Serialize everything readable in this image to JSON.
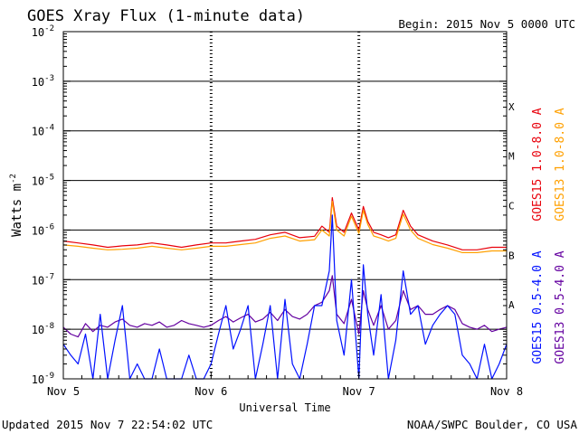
{
  "chart_data": {
    "type": "line",
    "title": "GOES Xray Flux (1-minute data)",
    "begin_label": "Begin:  2015 Nov 5 0000 UTC",
    "xlabel": "Universal Time",
    "ylabel": "Watts m",
    "ylabel_exp": "-2",
    "x_ticks": [
      "Nov 5",
      "Nov 6",
      "Nov 7",
      "Nov 8"
    ],
    "xlim": [
      0,
      3
    ],
    "x_unit": "days since 2015 Nov 5 0000 UTC",
    "y_scale": "log",
    "ylim": [
      1e-09,
      0.01
    ],
    "y_ticks": [
      {
        "base": "10",
        "exp": "-2"
      },
      {
        "base": "10",
        "exp": "-3"
      },
      {
        "base": "10",
        "exp": "-4"
      },
      {
        "base": "10",
        "exp": "-5"
      },
      {
        "base": "10",
        "exp": "-6"
      },
      {
        "base": "10",
        "exp": "-7"
      },
      {
        "base": "10",
        "exp": "-8"
      },
      {
        "base": "10",
        "exp": "-9"
      }
    ],
    "flare_classes": [
      {
        "label": "X",
        "value": 0.0001
      },
      {
        "label": "M",
        "value": 1e-05
      },
      {
        "label": "C",
        "value": 1e-06
      },
      {
        "label": "B",
        "value": 1e-07
      },
      {
        "label": "A",
        "value": 1e-08
      }
    ],
    "series": [
      {
        "name": "GOES15 1.0-8.0 A",
        "color": "#e8000b",
        "x": [
          0,
          0.1,
          0.2,
          0.3,
          0.4,
          0.5,
          0.6,
          0.7,
          0.8,
          0.9,
          1.0,
          1.1,
          1.2,
          1.3,
          1.4,
          1.5,
          1.6,
          1.7,
          1.75,
          1.8,
          1.82,
          1.85,
          1.9,
          1.95,
          2.0,
          2.03,
          2.06,
          2.1,
          2.15,
          2.2,
          2.25,
          2.3,
          2.35,
          2.4,
          2.5,
          2.6,
          2.7,
          2.8,
          2.9,
          3.0
        ],
        "values": [
          6e-07,
          5.5e-07,
          5e-07,
          4.5e-07,
          4.8e-07,
          5e-07,
          5.5e-07,
          5e-07,
          4.5e-07,
          5e-07,
          5.5e-07,
          5.5e-07,
          6e-07,
          6.5e-07,
          8e-07,
          9e-07,
          7e-07,
          7.5e-07,
          1.2e-06,
          9e-07,
          4.5e-06,
          1.2e-06,
          9e-07,
          2.2e-06,
          1e-06,
          3e-06,
          1.5e-06,
          9e-07,
          8e-07,
          7e-07,
          8e-07,
          2.5e-06,
          1.2e-06,
          8e-07,
          6e-07,
          5e-07,
          4e-07,
          4e-07,
          4.5e-07,
          4.5e-07
        ]
      },
      {
        "name": "GOES13 1.0-8.0 A",
        "color": "#ffa000",
        "x": [
          0,
          0.1,
          0.2,
          0.3,
          0.4,
          0.5,
          0.6,
          0.7,
          0.8,
          0.9,
          1.0,
          1.1,
          1.2,
          1.3,
          1.4,
          1.5,
          1.6,
          1.7,
          1.75,
          1.8,
          1.82,
          1.85,
          1.9,
          1.95,
          2.0,
          2.03,
          2.06,
          2.1,
          2.15,
          2.2,
          2.25,
          2.3,
          2.35,
          2.4,
          2.5,
          2.6,
          2.7,
          2.8,
          2.9,
          3.0
        ],
        "values": [
          5e-07,
          4.7e-07,
          4.3e-07,
          4e-07,
          4.1e-07,
          4.3e-07,
          4.7e-07,
          4.3e-07,
          4e-07,
          4.3e-07,
          4.7e-07,
          4.7e-07,
          5.1e-07,
          5.5e-07,
          6.8e-07,
          7.6e-07,
          6e-07,
          6.4e-07,
          1e-06,
          7.6e-07,
          3.8e-06,
          1e-06,
          7.6e-07,
          1.9e-06,
          8.5e-07,
          2.5e-06,
          1.3e-06,
          7.6e-07,
          6.8e-07,
          6e-07,
          6.8e-07,
          2.1e-06,
          1e-06,
          6.8e-07,
          5.1e-07,
          4.3e-07,
          3.5e-07,
          3.5e-07,
          3.8e-07,
          3.8e-07
        ]
      },
      {
        "name": "GOES15 0.5-4.0 A",
        "color": "#0010ff",
        "x": [
          0,
          0.05,
          0.1,
          0.15,
          0.2,
          0.25,
          0.3,
          0.35,
          0.4,
          0.45,
          0.5,
          0.55,
          0.6,
          0.65,
          0.7,
          0.75,
          0.8,
          0.85,
          0.9,
          0.95,
          1.0,
          1.05,
          1.1,
          1.15,
          1.2,
          1.25,
          1.3,
          1.35,
          1.4,
          1.45,
          1.5,
          1.55,
          1.6,
          1.65,
          1.7,
          1.75,
          1.8,
          1.82,
          1.85,
          1.9,
          1.95,
          2.0,
          2.03,
          2.06,
          2.1,
          2.15,
          2.2,
          2.25,
          2.3,
          2.35,
          2.4,
          2.45,
          2.5,
          2.55,
          2.6,
          2.65,
          2.7,
          2.75,
          2.8,
          2.85,
          2.9,
          2.95,
          3.0
        ],
        "values": [
          5e-09,
          3e-09,
          2e-09,
          8e-09,
          1e-09,
          2e-08,
          1e-09,
          6e-09,
          3e-08,
          1e-09,
          2e-09,
          1e-09,
          1e-09,
          4e-09,
          1e-09,
          1e-09,
          1e-09,
          3e-09,
          1e-09,
          1e-09,
          2e-09,
          8e-09,
          3e-08,
          4e-09,
          1e-08,
          3e-08,
          1e-09,
          5e-09,
          3e-08,
          1e-09,
          4e-08,
          2e-09,
          1e-09,
          5e-09,
          3e-08,
          3e-08,
          1.5e-07,
          2e-06,
          1.5e-08,
          3e-09,
          1e-07,
          1e-09,
          2e-07,
          2e-08,
          3e-09,
          5e-08,
          1e-09,
          6e-09,
          1.5e-07,
          2e-08,
          3e-08,
          5e-09,
          1.2e-08,
          2e-08,
          3e-08,
          2e-08,
          3e-09,
          2e-09,
          1e-09,
          5e-09,
          1e-09,
          2e-09,
          5e-09
        ]
      },
      {
        "name": "GOES13 0.5-4.0 A",
        "color": "#6400a0",
        "x": [
          0,
          0.05,
          0.1,
          0.15,
          0.2,
          0.25,
          0.3,
          0.35,
          0.4,
          0.45,
          0.5,
          0.55,
          0.6,
          0.65,
          0.7,
          0.75,
          0.8,
          0.85,
          0.9,
          0.95,
          1.0,
          1.05,
          1.1,
          1.15,
          1.2,
          1.25,
          1.3,
          1.35,
          1.4,
          1.45,
          1.5,
          1.55,
          1.6,
          1.65,
          1.7,
          1.75,
          1.8,
          1.82,
          1.85,
          1.9,
          1.95,
          2.0,
          2.03,
          2.06,
          2.1,
          2.15,
          2.2,
          2.25,
          2.3,
          2.35,
          2.4,
          2.45,
          2.5,
          2.55,
          2.6,
          2.65,
          2.7,
          2.75,
          2.8,
          2.85,
          2.9,
          2.95,
          3.0
        ],
        "values": [
          1.1e-08,
          8e-09,
          7e-09,
          1.3e-08,
          9e-09,
          1.2e-08,
          1.1e-08,
          1.4e-08,
          1.6e-08,
          1.2e-08,
          1.1e-08,
          1.3e-08,
          1.2e-08,
          1.4e-08,
          1.1e-08,
          1.2e-08,
          1.5e-08,
          1.3e-08,
          1.2e-08,
          1.1e-08,
          1.2e-08,
          1.5e-08,
          1.8e-08,
          1.4e-08,
          1.7e-08,
          2e-08,
          1.4e-08,
          1.6e-08,
          2.2e-08,
          1.5e-08,
          2.5e-08,
          1.8e-08,
          1.6e-08,
          2e-08,
          3e-08,
          3.5e-08,
          6e-08,
          1.2e-07,
          2e-08,
          1.3e-08,
          4e-08,
          8e-09,
          6e-08,
          2.5e-08,
          1.2e-08,
          3e-08,
          1e-08,
          1.5e-08,
          6e-08,
          2.5e-08,
          3e-08,
          2e-08,
          2e-08,
          2.5e-08,
          3e-08,
          2.5e-08,
          1.3e-08,
          1.1e-08,
          1e-08,
          1.2e-08,
          9e-09,
          1e-08,
          1.1e-08
        ]
      }
    ],
    "legend_placement": "right"
  },
  "footer": {
    "updated": "Updated 2015 Nov  7 22:54:02 UTC",
    "credit": "NOAA/SWPC Boulder, CO USA"
  }
}
